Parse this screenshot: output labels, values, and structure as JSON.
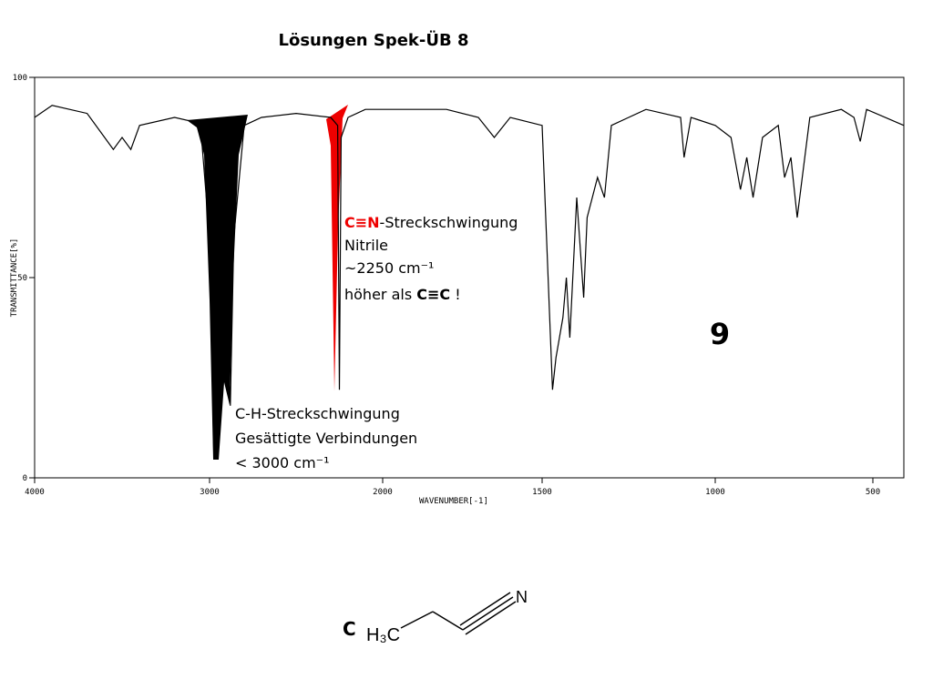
{
  "title": "Lösungen Spek-ÜB 8",
  "chart_data": {
    "type": "line",
    "x": [
      4000,
      3900,
      3700,
      3600,
      3550,
      3500,
      3450,
      3400,
      3200,
      3100,
      3050,
      3000,
      2975,
      2960,
      2940,
      2900,
      2880,
      2860,
      2800,
      2700,
      2500,
      2300,
      2260,
      2250,
      2240,
      2200,
      2100,
      2000,
      1800,
      1700,
      1650,
      1600,
      1500,
      1470,
      1460,
      1440,
      1430,
      1420,
      1400,
      1380,
      1370,
      1340,
      1320,
      1300,
      1250,
      1200,
      1100,
      1090,
      1070,
      1000,
      950,
      920,
      900,
      880,
      850,
      800,
      780,
      760,
      740,
      700,
      600,
      560,
      540,
      520,
      400
    ],
    "series": [
      {
        "color": "#000000",
        "values": [
          90,
          93,
          91,
          85,
          82,
          85,
          82,
          88,
          90,
          89,
          87,
          60,
          5,
          20,
          15,
          40,
          18,
          60,
          88,
          90,
          91,
          90,
          88,
          22,
          85,
          90,
          92,
          92,
          92,
          90,
          85,
          90,
          88,
          22,
          30,
          40,
          50,
          35,
          70,
          45,
          65,
          75,
          70,
          88,
          90,
          92,
          90,
          80,
          90,
          88,
          85,
          72,
          80,
          70,
          85,
          88,
          75,
          80,
          65,
          90,
          92,
          90,
          84,
          92,
          88
        ]
      }
    ],
    "xlim": [
      4000,
      400
    ],
    "xticks": [
      4000,
      3000,
      2000,
      1500,
      1000,
      500
    ],
    "ylim": [
      0,
      100
    ],
    "yticks": [
      0,
      50,
      100
    ],
    "xlabel": "WAVENUMBER[-1]",
    "ylabel": "TRANSMITTANCE[%]"
  },
  "annotations": {
    "nitrile": {
      "highlight": "C≡N",
      "text": "-Streckschwingung",
      "lines": [
        "Nitrile",
        "~2250 cm⁻¹"
      ],
      "last": "höher als ",
      "last_bold": "C≡C",
      "last_end": " !"
    },
    "ch": [
      "C-H-Streckschwingung",
      "Gesättigte Verbindungen",
      "< 3000 cm⁻¹"
    ],
    "number": "9"
  },
  "molecule": {
    "letter": "C",
    "left": "H₃C",
    "right": "N"
  }
}
